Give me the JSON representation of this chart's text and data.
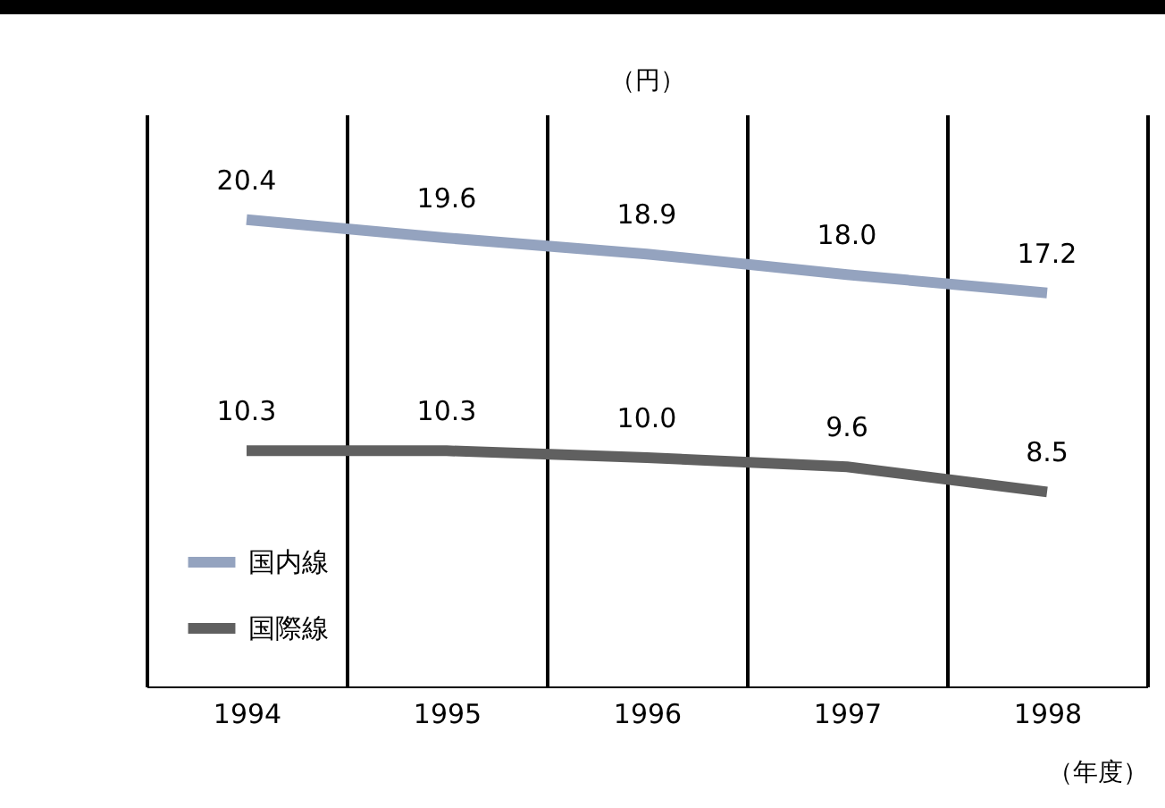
{
  "chart_data": {
    "type": "line",
    "xlabel": "（年度）",
    "ylabel": "（円）",
    "categories": [
      "1994",
      "1995",
      "1996",
      "1997",
      "1998"
    ],
    "series": [
      {
        "name": "国内線",
        "color": "#94a3bf",
        "values": [
          20.4,
          19.6,
          18.9,
          18.0,
          17.2
        ],
        "value_labels": [
          "20.4",
          "19.6",
          "18.9",
          "18.0",
          "17.2"
        ]
      },
      {
        "name": "国際線",
        "color": "#606060",
        "values": [
          10.3,
          10.3,
          10.0,
          9.6,
          8.5
        ],
        "value_labels": [
          "10.3",
          "10.3",
          "10.0",
          "9.6",
          "8.5"
        ]
      }
    ],
    "ylim": [
      0,
      25
    ],
    "grid": "x",
    "legend": "bottom left",
    "tick_labels": "x",
    "marker": "none"
  }
}
